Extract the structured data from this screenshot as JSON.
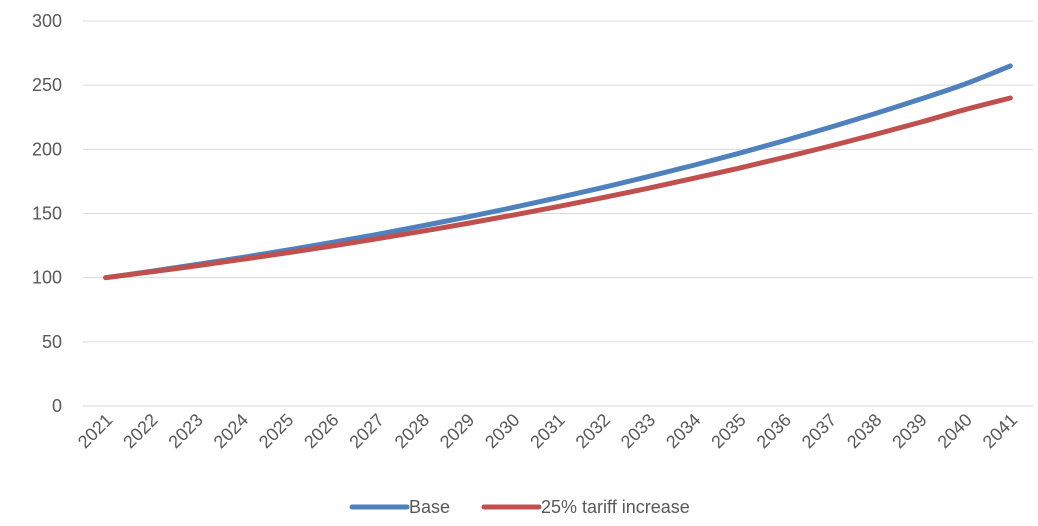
{
  "chart_data": {
    "type": "line",
    "title": "",
    "xlabel": "",
    "ylabel": "",
    "ylim": [
      0,
      300
    ],
    "yticks": [
      0,
      50,
      100,
      150,
      200,
      250,
      300
    ],
    "grid": true,
    "legend_position": "bottom",
    "x": [
      "2021",
      "2022",
      "2023",
      "2024",
      "2025",
      "2026",
      "2027",
      "2028",
      "2029",
      "2030",
      "2031",
      "2032",
      "2033",
      "2034",
      "2035",
      "2036",
      "2037",
      "2038",
      "2039",
      "2040",
      "2041"
    ],
    "series": [
      {
        "name": "Base",
        "color": "#4f81bd",
        "values": [
          100,
          104.9,
          110.2,
          115.6,
          121.4,
          127.4,
          133.7,
          140.4,
          147.3,
          154.6,
          162.3,
          170.3,
          178.8,
          187.6,
          196.9,
          206.7,
          217,
          227.7,
          239,
          250.9,
          265
        ]
      },
      {
        "name": "25% tariff increase",
        "color": "#c0504d",
        "values": [
          100,
          104.5,
          109.2,
          114.2,
          119.3,
          124.7,
          130.3,
          136.2,
          142.3,
          148.7,
          155.4,
          162.4,
          169.7,
          177.4,
          185.3,
          193.7,
          202.4,
          211.5,
          221,
          231,
          240
        ]
      }
    ]
  }
}
